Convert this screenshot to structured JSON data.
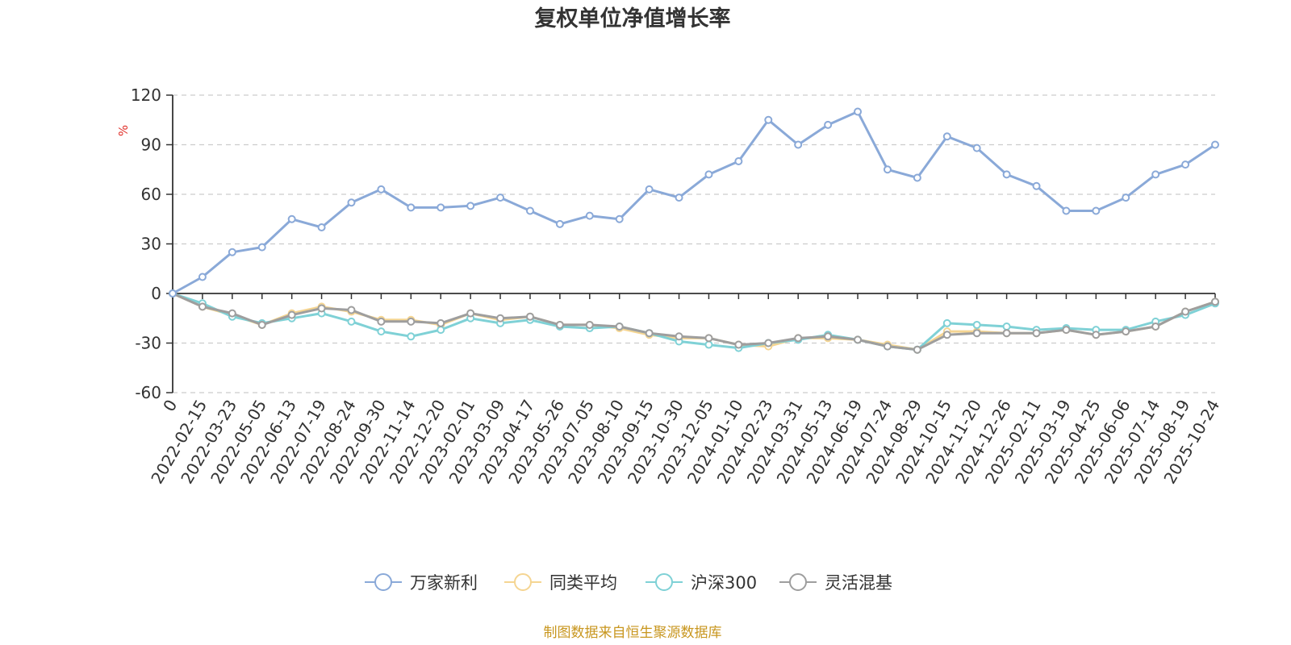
{
  "chart_data": {
    "type": "line",
    "title": "复权单位净值增长率",
    "ylabel": "%",
    "ylim": [
      -60,
      120
    ],
    "yticks": [
      -60,
      -30,
      0,
      30,
      60,
      90,
      120
    ],
    "grid": true,
    "legend_position": "bottom",
    "x_tick_labels": [
      "0",
      "2022-02-15",
      "2022-03-23",
      "2022-05-05",
      "2022-06-13",
      "2022-07-19",
      "2022-08-24",
      "2022-09-30",
      "2022-11-14",
      "2022-12-20",
      "2023-02-01",
      "2023-03-09",
      "2023-04-17",
      "2023-05-26",
      "2023-07-05",
      "2023-08-10",
      "2023-09-15",
      "2023-10-30",
      "2023-12-05",
      "2024-01-10",
      "2024-02-23",
      "2024-03-31",
      "2024-05-13",
      "2024-06-19",
      "2024-07-24",
      "2024-08-29",
      "2024-10-15",
      "2024-11-20",
      "2024-12-26",
      "2025-02-11",
      "2025-03-19",
      "2025-04-25",
      "2025-06-06",
      "2025-07-14",
      "2025-08-19",
      "2025-10-24"
    ],
    "series": [
      {
        "name": "万家新利",
        "color": "#8aa9d8",
        "values": [
          0,
          10,
          25,
          28,
          45,
          40,
          55,
          63,
          52,
          52,
          53,
          58,
          50,
          42,
          47,
          45,
          63,
          58,
          72,
          80,
          105,
          90,
          102,
          110,
          75,
          70,
          95,
          88,
          72,
          65,
          50,
          50,
          58,
          72,
          78,
          90
        ]
      },
      {
        "name": "同类平均",
        "color": "#f5d592",
        "values": [
          0,
          -8,
          -13,
          -19,
          -12,
          -8,
          -11,
          -16,
          -16,
          -19,
          -12,
          -16,
          -14,
          -19,
          -19,
          -21,
          -25,
          -27,
          -27,
          -31,
          -32,
          -27,
          -27,
          -28,
          -31,
          -34,
          -23,
          -23,
          -24,
          -24,
          -22,
          -25,
          -23,
          -20,
          -11,
          -5
        ]
      },
      {
        "name": "沪深300",
        "color": "#7fd1d6",
        "values": [
          0,
          -6,
          -14,
          -18,
          -15,
          -12,
          -17,
          -23,
          -26,
          -22,
          -15,
          -18,
          -16,
          -20,
          -21,
          -20,
          -24,
          -29,
          -31,
          -33,
          -30,
          -28,
          -25,
          -28,
          -32,
          -34,
          -18,
          -19,
          -20,
          -22,
          -21,
          -22,
          -22,
          -17,
          -13,
          -6
        ]
      },
      {
        "name": "灵活混基",
        "color": "#9e9e9e",
        "values": [
          0,
          -8,
          -12,
          -19,
          -13,
          -9,
          -10,
          -17,
          -17,
          -18,
          -12,
          -15,
          -14,
          -19,
          -19,
          -20,
          -24,
          -26,
          -27,
          -31,
          -30,
          -27,
          -26,
          -28,
          -32,
          -34,
          -25,
          -24,
          -24,
          -24,
          -22,
          -25,
          -23,
          -20,
          -11,
          -5
        ]
      }
    ]
  },
  "footer": {
    "source": "制图数据来自恒生聚源数据库"
  }
}
